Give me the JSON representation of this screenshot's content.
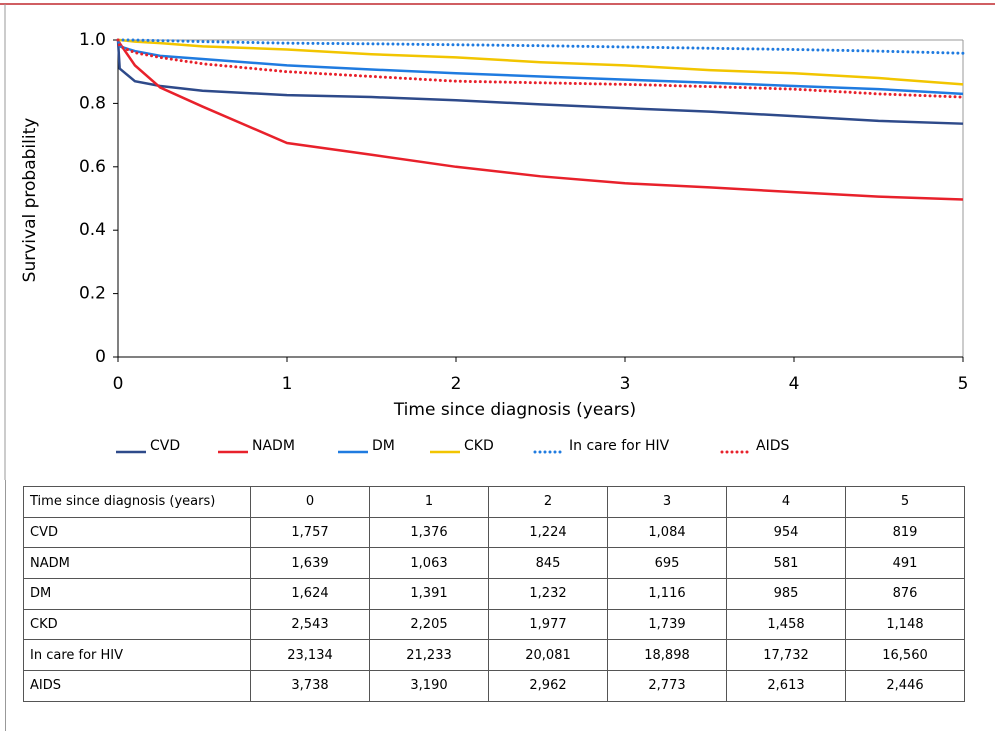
{
  "chart_data": {
    "type": "line",
    "x_label": "Time since diagnosis (years)",
    "y_label": "Survival probability",
    "x": [
      0,
      0.01,
      0.1,
      0.25,
      0.5,
      1,
      1.5,
      2,
      2.5,
      3,
      3.5,
      4,
      4.5,
      5
    ],
    "xlim": [
      0,
      5
    ],
    "xticks": [
      0,
      1,
      2,
      3,
      4,
      5
    ],
    "ylim": [
      0,
      1
    ],
    "yticks": [
      0,
      0.2,
      0.4,
      0.6,
      0.8,
      {
        "value": 1,
        "label": "1.0"
      }
    ],
    "series": [
      {
        "name": "CVD",
        "color": "#2e4a8a",
        "line_style": "solid",
        "values": [
          1,
          0.91,
          0.87,
          0.855,
          0.84,
          0.826,
          0.82,
          0.81,
          0.797,
          0.785,
          0.774,
          0.76,
          0.745,
          0.736
        ]
      },
      {
        "name": "NADM",
        "color": "#e8212b",
        "line_style": "solid",
        "values": [
          1,
          0.99,
          0.92,
          0.85,
          0.79,
          0.675,
          0.638,
          0.6,
          0.57,
          0.548,
          0.535,
          0.52,
          0.506,
          0.497
        ]
      },
      {
        "name": "DM",
        "color": "#1f7be0",
        "line_style": "solid",
        "values": [
          1,
          0.98,
          0.965,
          0.95,
          0.94,
          0.92,
          0.907,
          0.895,
          0.885,
          0.875,
          0.865,
          0.855,
          0.845,
          0.83
        ]
      },
      {
        "name": "CKD",
        "color": "#f2c500",
        "line_style": "solid",
        "values": [
          1,
          1,
          0.995,
          0.99,
          0.98,
          0.97,
          0.955,
          0.945,
          0.93,
          0.92,
          0.905,
          0.895,
          0.88,
          0.86
        ]
      },
      {
        "name": "In care for HIV",
        "color": "#1f7be0",
        "line_style": "dotted",
        "values": [
          1,
          1,
          1,
          0.998,
          0.995,
          0.99,
          0.988,
          0.985,
          0.982,
          0.978,
          0.974,
          0.97,
          0.965,
          0.958
        ]
      },
      {
        "name": "AIDS",
        "color": "#e8212b",
        "line_style": "dotted",
        "values": [
          1,
          0.98,
          0.96,
          0.945,
          0.925,
          0.9,
          0.885,
          0.87,
          0.865,
          0.86,
          0.853,
          0.845,
          0.83,
          0.82
        ]
      }
    ]
  },
  "table": {
    "header": [
      "Time since diagnosis (years)",
      "0",
      "1",
      "2",
      "3",
      "4",
      "5"
    ],
    "rows": [
      [
        "CVD",
        "1,757",
        "1,376",
        "1,224",
        "1,084",
        "954",
        "819"
      ],
      [
        "NADM",
        "1,639",
        "1,063",
        "845",
        "695",
        "581",
        "491"
      ],
      [
        "DM",
        "1,624",
        "1,391",
        "1,232",
        "1,116",
        "985",
        "876"
      ],
      [
        "CKD",
        "2,543",
        "2,205",
        "1,977",
        "1,739",
        "1,458",
        "1,148"
      ],
      [
        "In care for HIV",
        "23,134",
        "21,233",
        "20,081",
        "18,898",
        "17,732",
        "16,560"
      ],
      [
        "AIDS",
        "3,738",
        "3,190",
        "2,962",
        "2,773",
        "2,613",
        "2,446"
      ]
    ]
  }
}
